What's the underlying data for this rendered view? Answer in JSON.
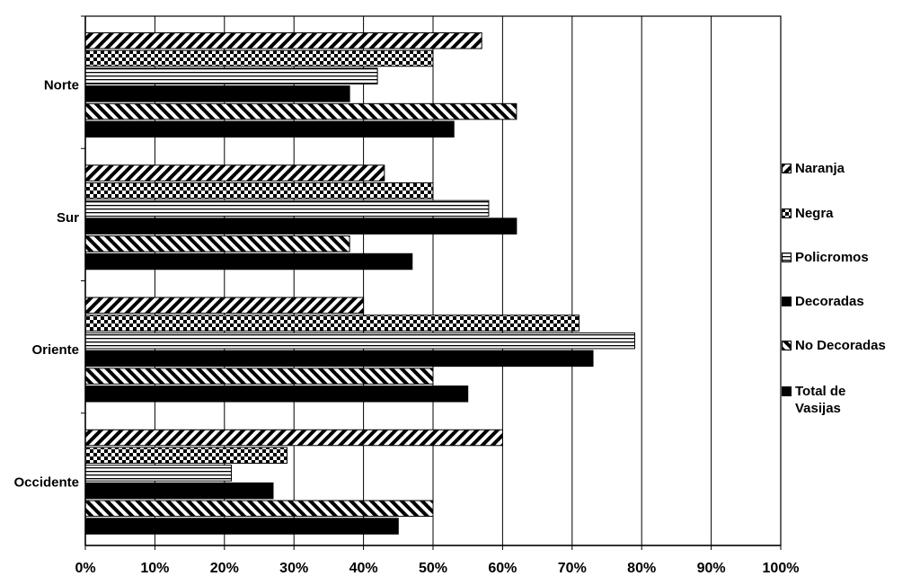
{
  "chart_data": {
    "type": "bar",
    "orientation": "horizontal",
    "categories": [
      "Norte",
      "Sur",
      "Oriente",
      "Occidente"
    ],
    "series": [
      {
        "name": "Naranja",
        "color": "#000000",
        "pattern": "diagonal-up",
        "values": [
          57,
          43,
          40,
          60
        ]
      },
      {
        "name": "Negra",
        "color": "#000000",
        "pattern": "checker",
        "values": [
          50,
          50,
          71,
          29
        ]
      },
      {
        "name": "Policromos",
        "color": "#000000",
        "pattern": "horizontal",
        "values": [
          42,
          58,
          79,
          21
        ]
      },
      {
        "name": "Decoradas",
        "color": "#000000",
        "pattern": "solid",
        "values": [
          38,
          62,
          73,
          27
        ]
      },
      {
        "name": "No Decoradas",
        "color": "#000000",
        "pattern": "diagonal-down",
        "values": [
          62,
          38,
          50,
          50
        ]
      },
      {
        "name": "Total de Vasijas",
        "color": "#000000",
        "pattern": "solid",
        "values": [
          53,
          47,
          55,
          45
        ]
      }
    ],
    "xlim": [
      0,
      100
    ],
    "xticks": [
      {
        "value": 0,
        "label": "0%"
      },
      {
        "value": 10,
        "label": "10%"
      },
      {
        "value": 20,
        "label": "20%"
      },
      {
        "value": 30,
        "label": "30%"
      },
      {
        "value": 40,
        "label": "40%"
      },
      {
        "value": 50,
        "label": "50%"
      },
      {
        "value": 60,
        "label": "60%"
      },
      {
        "value": 70,
        "label": "70%"
      },
      {
        "value": 80,
        "label": "80%"
      },
      {
        "value": 90,
        "label": "90%"
      },
      {
        "value": 100,
        "label": "100%"
      }
    ],
    "grid": true,
    "legend": "right"
  }
}
